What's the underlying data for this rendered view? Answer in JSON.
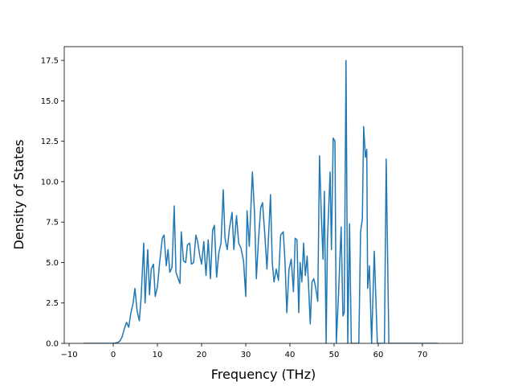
{
  "chart_data": {
    "type": "line",
    "xlabel": "Frequency (THz)",
    "ylabel": "Density of States",
    "x": [
      -6.8,
      -3,
      0,
      1,
      1.5,
      2,
      2.5,
      3,
      3.5,
      4,
      4.5,
      4.9,
      5.4,
      5.9,
      6.3,
      6.9,
      7.2,
      7.8,
      8.2,
      8.6,
      9.1,
      9.5,
      10,
      10.5,
      11.1,
      11.5,
      12,
      12.4,
      12.8,
      13.3,
      13.8,
      14.2,
      14.7,
      15.1,
      15.4,
      15.9,
      16.4,
      16.8,
      17.3,
      17.7,
      18.2,
      18.7,
      19.1,
      19.6,
      20,
      20.5,
      21,
      21.5,
      22,
      22.5,
      22.9,
      23.4,
      23.9,
      24.4,
      24.9,
      25.3,
      25.8,
      26.3,
      26.9,
      27.3,
      27.9,
      28.4,
      28.9,
      29.5,
      30,
      30.3,
      30.8,
      31.5,
      32,
      32.4,
      32.9,
      33.4,
      33.8,
      34.3,
      34.8,
      35.3,
      35.6,
      36,
      36.4,
      36.9,
      37.4,
      37.9,
      38.5,
      38.9,
      39.3,
      39.8,
      40.3,
      40.8,
      41.2,
      41.6,
      42,
      42.3,
      42.7,
      43.1,
      43.5,
      43.9,
      44.3,
      44.6,
      45,
      45.4,
      45.8,
      46.3,
      46.7,
      47.1,
      47.5,
      47.8,
      48.2,
      48.5,
      49.1,
      49.4,
      49.8,
      50.2,
      50.5,
      51,
      51.6,
      52,
      52.3,
      52.7,
      53.1,
      53.5,
      53.9,
      55.6,
      56,
      56.4,
      56.7,
      57.1,
      57.4,
      57.6,
      58,
      58.5,
      59.1,
      59.8,
      61.4,
      61.8,
      62.4,
      66,
      73.5
    ],
    "series": [
      {
        "color": "#1f77b4",
        "values": [
          0,
          0,
          0,
          0.05,
          0.15,
          0.4,
          0.9,
          1.3,
          1.0,
          1.9,
          2.5,
          3.4,
          2.0,
          1.4,
          2.8,
          6.2,
          2.5,
          5.8,
          3.0,
          4.6,
          4.9,
          2.9,
          3.5,
          5.0,
          6.5,
          6.7,
          4.8,
          5.8,
          4.4,
          4.7,
          8.5,
          4.4,
          4.0,
          3.7,
          6.9,
          5.1,
          5.0,
          6.1,
          6.2,
          4.9,
          5.0,
          6.7,
          6.3,
          5.4,
          4.9,
          6.3,
          4.2,
          6.4,
          4.0,
          7.0,
          7.3,
          4.1,
          5.6,
          6.2,
          9.5,
          6.5,
          5.8,
          7.1,
          8.1,
          5.8,
          7.9,
          6.2,
          5.9,
          5.1,
          2.9,
          8.2,
          6.0,
          10.6,
          8.0,
          4.0,
          6.5,
          8.4,
          8.7,
          6.8,
          4.6,
          7.4,
          9.2,
          5.0,
          3.8,
          4.6,
          3.9,
          6.7,
          6.9,
          5.0,
          1.9,
          4.6,
          5.2,
          3.2,
          6.5,
          6.4,
          1.9,
          5.0,
          3.8,
          6.2,
          4.2,
          5.4,
          3.1,
          1.2,
          3.8,
          4.0,
          3.5,
          2.6,
          11.6,
          8.0,
          5.2,
          9.4,
          0,
          6.4,
          10.6,
          5.8,
          12.7,
          12.5,
          0,
          3.0,
          7.2,
          1.7,
          1.9,
          17.5,
          0,
          7.4,
          0,
          0,
          6.9,
          7.7,
          13.4,
          11.5,
          12.0,
          3.4,
          4.8,
          0,
          5.7,
          0,
          0,
          11.4,
          0,
          0,
          0
        ]
      }
    ],
    "xlim": [
      -11.1,
      79.1
    ],
    "xticks": [
      {
        "value": -10,
        "label": "−10"
      },
      0,
      10,
      20,
      30,
      40,
      50,
      60,
      70
    ],
    "ylim": [
      0,
      18.35
    ],
    "yticks": [
      {
        "value": 0,
        "label": "0.0"
      },
      2.5,
      {
        "value": 5,
        "label": "5.0"
      },
      7.5,
      {
        "value": 10,
        "label": "10.0"
      },
      12.5,
      {
        "value": 15,
        "label": "15.0"
      },
      17.5
    ]
  }
}
